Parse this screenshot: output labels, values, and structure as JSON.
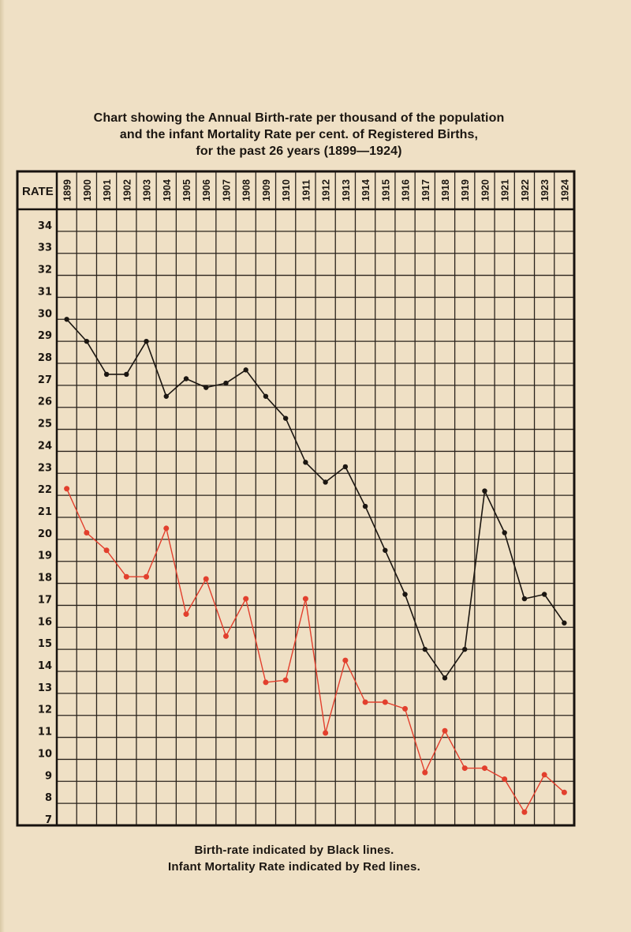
{
  "title": {
    "lines": [
      "Chart showing the Annual Birth-rate per thousand of the population",
      "and the infant Mortality Rate per cent. of Registered Births,",
      "for the past 26 years (1899—1924)"
    ]
  },
  "table_header": {
    "rate_label": "RATE"
  },
  "legend": {
    "black": "Birth-rate indicated by Black lines.",
    "red": "Infant Mortality Rate indicated by Red lines."
  },
  "colors": {
    "background": "#efe0c5",
    "grid": "#2a231c",
    "birth_rate_line": "#1b1611",
    "infant_mortality_line": "#e23f2d"
  },
  "chart_data": {
    "type": "line",
    "title": "Chart showing the Annual Birth-rate per thousand of the population and the infant Mortality Rate per cent. of Registered Births, for the past 26 years (1899—1924)",
    "xlabel": "",
    "ylabel": "RATE",
    "categories": [
      "1899",
      "1900",
      "1901",
      "1902",
      "1903",
      "1904",
      "1905",
      "1906",
      "1907",
      "1908",
      "1909",
      "1910",
      "1911",
      "1912",
      "1913",
      "1914",
      "1915",
      "1916",
      "1917",
      "1918",
      "1919",
      "1920",
      "1921",
      "1922",
      "1923",
      "1924"
    ],
    "y_ticks": [
      34,
      33,
      32,
      31,
      30,
      29,
      28,
      27,
      26,
      25,
      24,
      23,
      22,
      21,
      20,
      19,
      18,
      17,
      16,
      15,
      14,
      13,
      12,
      11,
      10,
      9,
      8,
      7
    ],
    "ylim": [
      7,
      35
    ],
    "grid": true,
    "legend_position": "bottom",
    "series": [
      {
        "name": "Birth-rate per thousand of the population",
        "color": "#1b1611",
        "values": [
          30,
          29,
          27.5,
          27.5,
          29,
          26.5,
          27.3,
          26.9,
          27.1,
          27.7,
          26.5,
          25.5,
          23.5,
          22.6,
          23.3,
          21.5,
          19.5,
          17.5,
          15,
          13.7,
          15,
          22.2,
          20.3,
          17.3,
          17.5,
          16.2
        ]
      },
      {
        "name": "Infant Mortality Rate per cent. of Registered Births",
        "color": "#e23f2d",
        "values": [
          22.3,
          20.3,
          19.5,
          18.3,
          18.3,
          20.5,
          16.6,
          18.2,
          15.6,
          17.3,
          13.5,
          13.6,
          17.3,
          11.2,
          14.5,
          12.6,
          12.6,
          12.3,
          9.4,
          11.3,
          9.6,
          9.6,
          9.1,
          7.6,
          9.3,
          8.5
        ]
      }
    ]
  }
}
